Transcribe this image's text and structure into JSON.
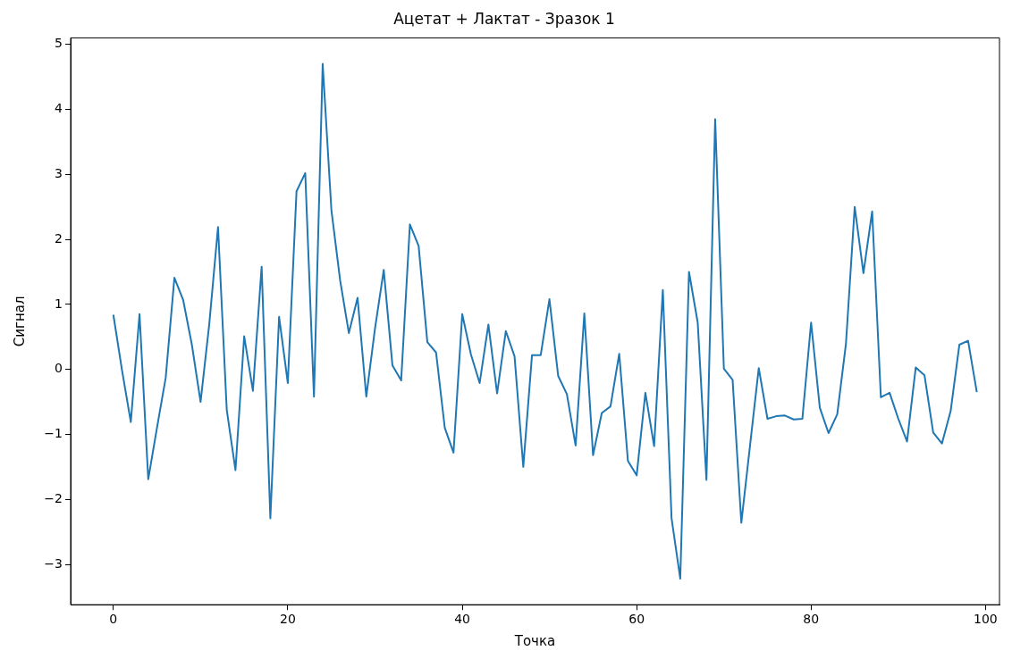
{
  "chart_data": {
    "type": "line",
    "title": "Ацетат + Лактат - Зразок 1",
    "xlabel": "Точка",
    "ylabel": "Сигнал",
    "x": [
      0,
      1,
      2,
      3,
      4,
      5,
      6,
      7,
      8,
      9,
      10,
      11,
      12,
      13,
      14,
      15,
      16,
      17,
      18,
      19,
      20,
      21,
      22,
      23,
      24,
      25,
      26,
      27,
      28,
      29,
      30,
      31,
      32,
      33,
      34,
      35,
      36,
      37,
      38,
      39,
      40,
      41,
      42,
      43,
      44,
      45,
      46,
      47,
      48,
      49,
      50,
      51,
      52,
      53,
      54,
      55,
      56,
      57,
      58,
      59,
      60,
      61,
      62,
      63,
      64,
      65,
      66,
      67,
      68,
      69,
      70,
      71,
      72,
      73,
      74,
      75,
      76,
      77,
      78,
      79,
      80,
      81,
      82,
      83,
      84,
      85,
      86,
      87,
      88,
      89,
      90,
      91,
      92,
      93,
      94,
      95,
      96,
      97,
      98,
      99
    ],
    "series": [
      {
        "color": "#1f77b4",
        "values": [
          0.84,
          -0.02,
          -0.81,
          0.85,
          -1.69,
          -0.9,
          -0.13,
          1.41,
          1.07,
          0.38,
          -0.5,
          0.7,
          2.19,
          -0.62,
          -1.55,
          0.51,
          -0.33,
          1.58,
          -2.29,
          0.81,
          -0.21,
          2.74,
          3.02,
          -0.42,
          4.7,
          2.45,
          1.37,
          0.56,
          1.1,
          -0.42,
          0.63,
          1.53,
          0.06,
          -0.17,
          2.23,
          1.9,
          0.42,
          0.26,
          -0.9,
          -1.28,
          0.85,
          0.23,
          -0.21,
          0.69,
          -0.37,
          0.59,
          0.2,
          -1.5,
          0.22,
          0.22,
          1.08,
          -0.1,
          -0.38,
          -1.17,
          0.86,
          -1.32,
          -0.67,
          -0.57,
          0.24,
          -1.41,
          -1.63,
          -0.36,
          -1.18,
          1.22,
          -2.29,
          -3.22,
          1.5,
          0.72,
          -1.7,
          3.85,
          0.01,
          -0.16,
          -2.36,
          -1.17,
          0.02,
          -0.76,
          -0.72,
          -0.71,
          -0.77,
          -0.76,
          0.72,
          -0.59,
          -0.98,
          -0.69,
          0.4,
          2.5,
          1.48,
          2.43,
          -0.43,
          -0.36,
          -0.76,
          -1.11,
          0.03,
          -0.09,
          -0.97,
          -1.14,
          -0.64,
          0.38,
          0.44,
          -0.35
        ]
      }
    ],
    "xlim": [
      -4.9,
      101.6
    ],
    "ylim": [
      -3.62,
      5.1
    ],
    "xticks": [
      0,
      20,
      40,
      60,
      80,
      100
    ],
    "yticks": [
      -3,
      -2,
      -1,
      0,
      1,
      2,
      3,
      4,
      5
    ],
    "grid": false,
    "legend": false,
    "marker": "none",
    "line_style": "solid"
  }
}
